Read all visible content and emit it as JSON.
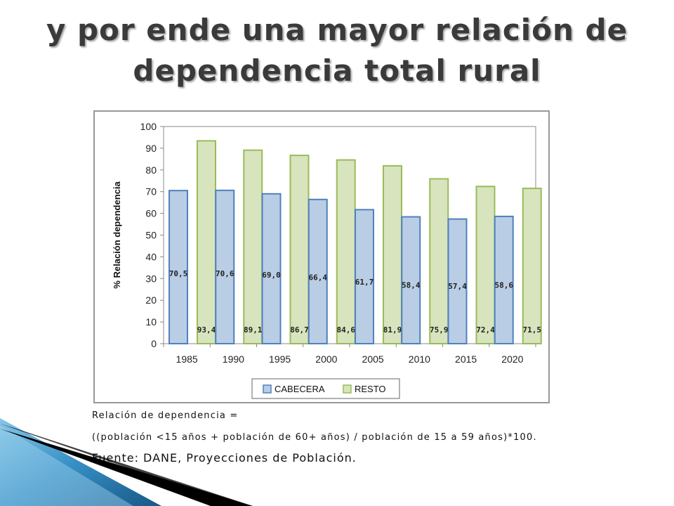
{
  "slide": {
    "title_line1": "y por ende una mayor relación de",
    "title_line2": "dependencia total rural"
  },
  "notes": {
    "definition_label": "Relación de dependencia =",
    "formula": "((población <15 años + población de 60+ años) / población de 15 a 59 años)*100.",
    "source": "Fuente: DANE, Proyecciones de Población."
  },
  "colors": {
    "cabecera": "#b9cde5",
    "cabecera_border": "#4f81bd",
    "resto": "#d7e4bd",
    "resto_border": "#9bbb59",
    "decor_blue": "#1f6fa5"
  },
  "chart_data": {
    "type": "bar",
    "categories": [
      "1985",
      "1990",
      "1995",
      "2000",
      "2005",
      "2010",
      "2015",
      "2020"
    ],
    "series": [
      {
        "name": "CABECERA",
        "values": [
          70.5,
          70.6,
          69.0,
          66.4,
          61.7,
          58.4,
          57.4,
          58.6
        ],
        "labels": [
          "70,5",
          "70,6",
          "69,0",
          "66,4",
          "61,7",
          "58,4",
          "57,4",
          "58,6"
        ]
      },
      {
        "name": "RESTO",
        "values": [
          93.4,
          89.1,
          86.7,
          84.6,
          81.9,
          75.9,
          72.4,
          71.5
        ],
        "labels": [
          "93,4",
          "89,1",
          "86,7",
          "84,6",
          "81,9",
          "75,9",
          "72,4",
          "71,5"
        ]
      }
    ],
    "title": "",
    "xlabel": "",
    "ylabel": "% Relación dependencia",
    "ylim": [
      0,
      100
    ],
    "yticks": [
      "0",
      "10",
      "20",
      "30",
      "40",
      "50",
      "60",
      "70",
      "80",
      "90",
      "100"
    ],
    "grid": false,
    "legend": "bottom"
  }
}
